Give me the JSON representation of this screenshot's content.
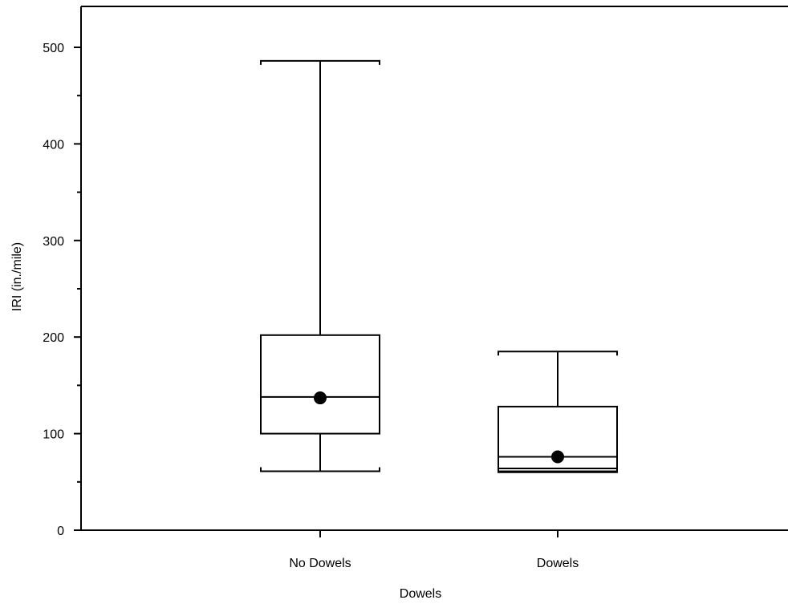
{
  "chart_data": {
    "type": "boxplot",
    "title": "",
    "xlabel": "Dowels",
    "ylabel": "IRI (in./mile)",
    "ylim": [
      0,
      500
    ],
    "y_ticks": [
      0,
      100,
      200,
      300,
      400,
      500
    ],
    "y_tick_labels": [
      "0",
      "100",
      "200",
      "300",
      "400",
      "500"
    ],
    "y_minor_ticks": [
      50,
      150,
      250,
      350,
      450
    ],
    "categories": [
      "No Dowels",
      "Dowels"
    ],
    "boxes": [
      {
        "category": "No Dowels",
        "whisker_low": 61,
        "q1": 100,
        "median": 138,
        "q3": 202,
        "whisker_high": 486,
        "mean": 137
      },
      {
        "category": "Dowels",
        "whisker_low": 60,
        "q1": 61,
        "median": 76,
        "q3": 128,
        "whisker_high": 185,
        "mean": 76,
        "extra_line": 64
      }
    ],
    "grid": false,
    "legend": "none"
  }
}
